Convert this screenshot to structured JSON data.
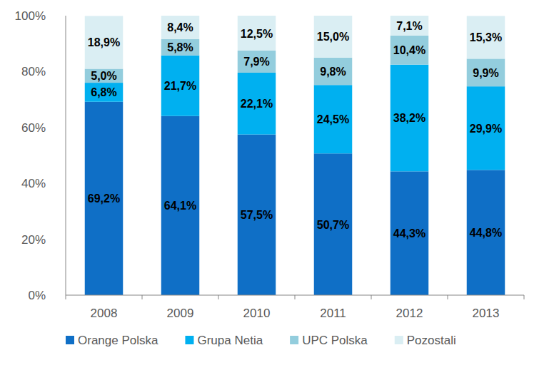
{
  "chart_data": {
    "type": "bar",
    "stacked": true,
    "data_labels": true,
    "grid": false,
    "legend": "bottom",
    "categories": [
      "2008",
      "2009",
      "2010",
      "2011",
      "2012",
      "2013"
    ],
    "ylim": [
      0,
      100
    ],
    "yticks": [
      {
        "value": 0,
        "label": "0%"
      },
      {
        "value": 20,
        "label": "20%"
      },
      {
        "value": 40,
        "label": "40%"
      },
      {
        "value": 60,
        "label": "60%"
      },
      {
        "value": 80,
        "label": "80%"
      },
      {
        "value": 100,
        "label": "100%"
      }
    ],
    "series": [
      {
        "name": "Orange Polska",
        "color": "#0F6FC6",
        "values": [
          69.2,
          64.1,
          57.5,
          50.7,
          44.3,
          44.8
        ],
        "value_labels": [
          "69,2%",
          "64,1%",
          "57,5%",
          "50,7%",
          "44,3%",
          "44,8%"
        ]
      },
      {
        "name": "Grupa Netia",
        "color": "#00B0F0",
        "values": [
          6.8,
          21.7,
          22.1,
          24.5,
          38.2,
          29.9
        ],
        "value_labels": [
          "6,8%",
          "21,7%",
          "22,1%",
          "24,5%",
          "38,2%",
          "29,9%"
        ]
      },
      {
        "name": "UPC Polska",
        "color": "#93CDDD",
        "values": [
          5.0,
          5.8,
          7.9,
          9.8,
          10.4,
          9.9
        ],
        "value_labels": [
          "5,0%",
          "5,8%",
          "7,9%",
          "9,8%",
          "10,4%",
          "9,9%"
        ]
      },
      {
        "name": "Pozostali",
        "color": "#DAEEF3",
        "values": [
          18.9,
          8.4,
          12.5,
          15.0,
          7.1,
          15.3
        ],
        "value_labels": [
          "18,9%",
          "8,4%",
          "12,5%",
          "15,0%",
          "7,1%",
          "15,3%"
        ]
      }
    ]
  }
}
